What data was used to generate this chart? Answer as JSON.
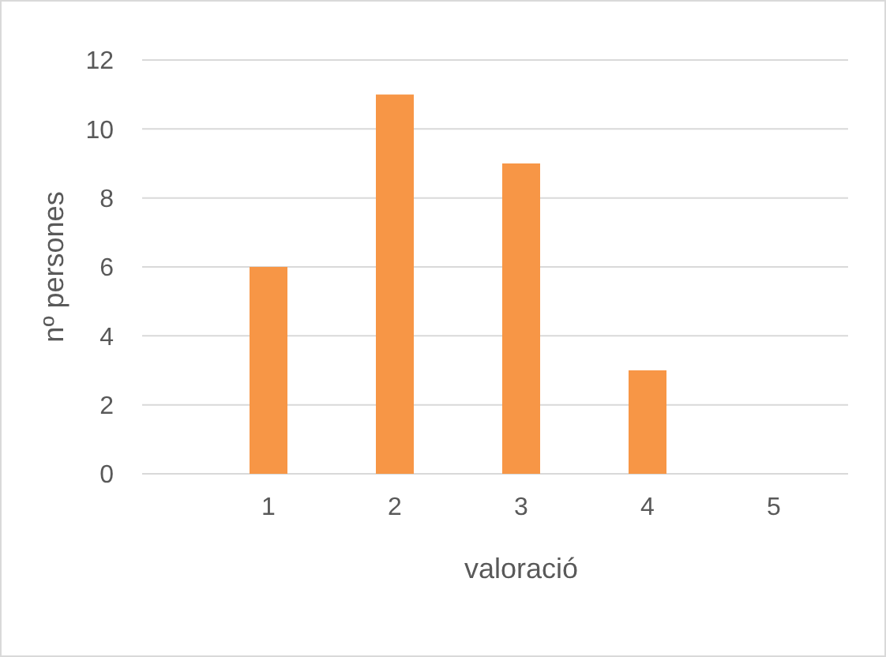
{
  "chart_data": {
    "type": "bar",
    "xlabel": "valoració",
    "ylabel": "nº persones",
    "categories": [
      "1",
      "2",
      "3",
      "4",
      "5"
    ],
    "values": [
      6,
      11,
      9,
      3,
      0
    ],
    "color": "#f79646",
    "ylim": [
      0,
      12
    ],
    "yticks": [
      0,
      2,
      4,
      6,
      8,
      10,
      12
    ],
    "grid": "y"
  }
}
